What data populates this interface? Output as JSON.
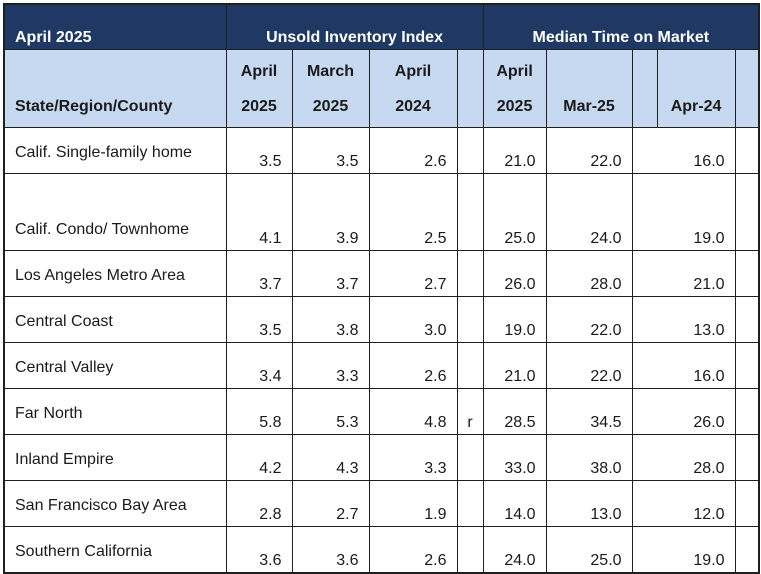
{
  "title_bar": {
    "period": "April 2025",
    "group_inventory": "Unsold Inventory Index",
    "group_market": "Median Time on Market"
  },
  "headers": {
    "region": "State/Region/County",
    "inv_current": [
      "April",
      "2025"
    ],
    "inv_prev_month": [
      "March",
      "2025"
    ],
    "inv_prev_year": [
      "April",
      "2024"
    ],
    "mkt_current": [
      "April",
      "2025"
    ],
    "mkt_prev_month": "Mar-25",
    "mkt_prev_year": "Apr-24"
  },
  "rows": [
    {
      "name": "Calif. Single-family home",
      "inv_current": "3.5",
      "inv_prev_month": "3.5",
      "inv_prev_year": "2.6",
      "flag": "",
      "mkt_current": "21.0",
      "mkt_prev_month": "22.0",
      "mkt_prev_year": "16.0"
    },
    {
      "name": "Calif. Condo/ Townhome",
      "inv_current": "4.1",
      "inv_prev_month": "3.9",
      "inv_prev_year": "2.5",
      "flag": "",
      "mkt_current": "25.0",
      "mkt_prev_month": "24.0",
      "mkt_prev_year": "19.0"
    },
    {
      "name": "Los Angeles Metro Area",
      "inv_current": "3.7",
      "inv_prev_month": "3.7",
      "inv_prev_year": "2.7",
      "flag": "",
      "mkt_current": "26.0",
      "mkt_prev_month": "28.0",
      "mkt_prev_year": "21.0"
    },
    {
      "name": "Central Coast",
      "inv_current": "3.5",
      "inv_prev_month": "3.8",
      "inv_prev_year": "3.0",
      "flag": "",
      "mkt_current": "19.0",
      "mkt_prev_month": "22.0",
      "mkt_prev_year": "13.0"
    },
    {
      "name": "Central Valley",
      "inv_current": "3.4",
      "inv_prev_month": "3.3",
      "inv_prev_year": "2.6",
      "flag": "",
      "mkt_current": "21.0",
      "mkt_prev_month": "22.0",
      "mkt_prev_year": "16.0"
    },
    {
      "name": "Far North",
      "inv_current": "5.8",
      "inv_prev_month": "5.3",
      "inv_prev_year": "4.8",
      "flag": "r",
      "mkt_current": "28.5",
      "mkt_prev_month": "34.5",
      "mkt_prev_year": "26.0"
    },
    {
      "name": "Inland Empire",
      "inv_current": "4.2",
      "inv_prev_month": "4.3",
      "inv_prev_year": "3.3",
      "flag": "",
      "mkt_current": "33.0",
      "mkt_prev_month": "38.0",
      "mkt_prev_year": "28.0"
    },
    {
      "name": "San Francisco Bay Area",
      "inv_current": "2.8",
      "inv_prev_month": "2.7",
      "inv_prev_year": "1.9",
      "flag": "",
      "mkt_current": "14.0",
      "mkt_prev_month": "13.0",
      "mkt_prev_year": "12.0"
    },
    {
      "name": "Southern California",
      "inv_current": "3.6",
      "inv_prev_month": "3.6",
      "inv_prev_year": "2.6",
      "flag": "",
      "mkt_current": "24.0",
      "mkt_prev_month": "25.0",
      "mkt_prev_year": "19.0"
    }
  ]
}
